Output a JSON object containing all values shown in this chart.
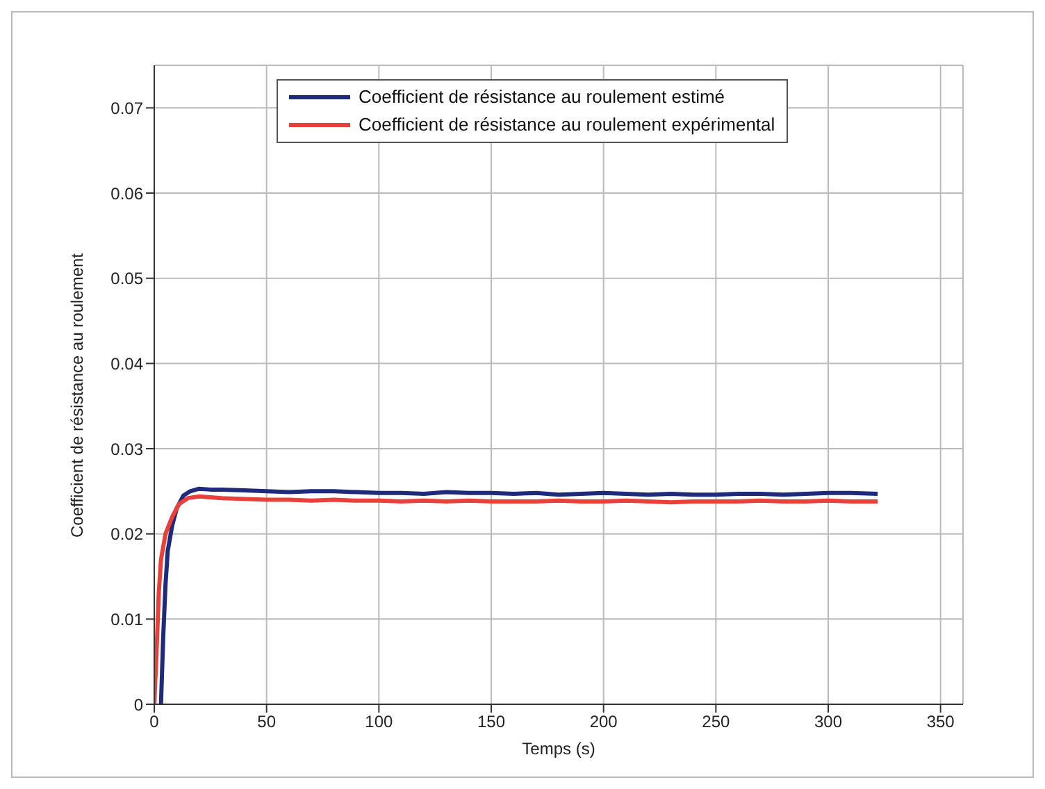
{
  "chart_data": {
    "type": "line",
    "xlabel": "Temps (s)",
    "ylabel": "Coefficient de résistance au roulement",
    "xlim": [
      0,
      360
    ],
    "ylim": [
      0,
      0.075
    ],
    "xticks": [
      0,
      50,
      100,
      150,
      200,
      250,
      300,
      350
    ],
    "yticks": [
      0,
      0.01,
      0.02,
      0.03,
      0.04,
      0.05,
      0.06,
      0.07
    ],
    "grid": true,
    "legend": "top right",
    "line_style": "solid",
    "marker": "none",
    "series": [
      {
        "name": "Coefficient de résistance au roulement estimé",
        "color": "#1f2a7a",
        "x": [
          3,
          4,
          5,
          6,
          8,
          10,
          13,
          16,
          20,
          25,
          30,
          40,
          50,
          60,
          70,
          80,
          90,
          100,
          110,
          120,
          130,
          140,
          150,
          160,
          170,
          180,
          190,
          200,
          210,
          220,
          230,
          240,
          250,
          260,
          270,
          280,
          290,
          300,
          310,
          322
        ],
        "values": [
          0,
          0.008,
          0.014,
          0.018,
          0.021,
          0.023,
          0.0245,
          0.025,
          0.0253,
          0.0252,
          0.0252,
          0.0251,
          0.025,
          0.0249,
          0.025,
          0.025,
          0.0249,
          0.0248,
          0.0248,
          0.0247,
          0.0249,
          0.0248,
          0.0248,
          0.0247,
          0.0248,
          0.0246,
          0.0247,
          0.0248,
          0.0247,
          0.0246,
          0.0247,
          0.0246,
          0.0246,
          0.0247,
          0.0247,
          0.0246,
          0.0247,
          0.0248,
          0.0248,
          0.0247
        ]
      },
      {
        "name": "Coefficient de résistance au roulement expérimental",
        "color": "#e8403a",
        "x": [
          0,
          1,
          2,
          3,
          5,
          8,
          11,
          15,
          20,
          25,
          30,
          40,
          50,
          60,
          70,
          80,
          90,
          100,
          110,
          120,
          130,
          140,
          150,
          160,
          170,
          180,
          190,
          200,
          210,
          220,
          230,
          240,
          250,
          260,
          270,
          280,
          290,
          300,
          310,
          322
        ],
        "values": [
          0,
          0.006,
          0.013,
          0.017,
          0.02,
          0.022,
          0.0235,
          0.0242,
          0.0244,
          0.0243,
          0.0242,
          0.0241,
          0.024,
          0.024,
          0.0239,
          0.024,
          0.0239,
          0.0239,
          0.0238,
          0.0239,
          0.0238,
          0.0239,
          0.0238,
          0.0238,
          0.0238,
          0.0239,
          0.0238,
          0.0238,
          0.0239,
          0.0238,
          0.0237,
          0.0238,
          0.0238,
          0.0238,
          0.0239,
          0.0238,
          0.0238,
          0.0239,
          0.0238,
          0.0238
        ]
      }
    ]
  }
}
